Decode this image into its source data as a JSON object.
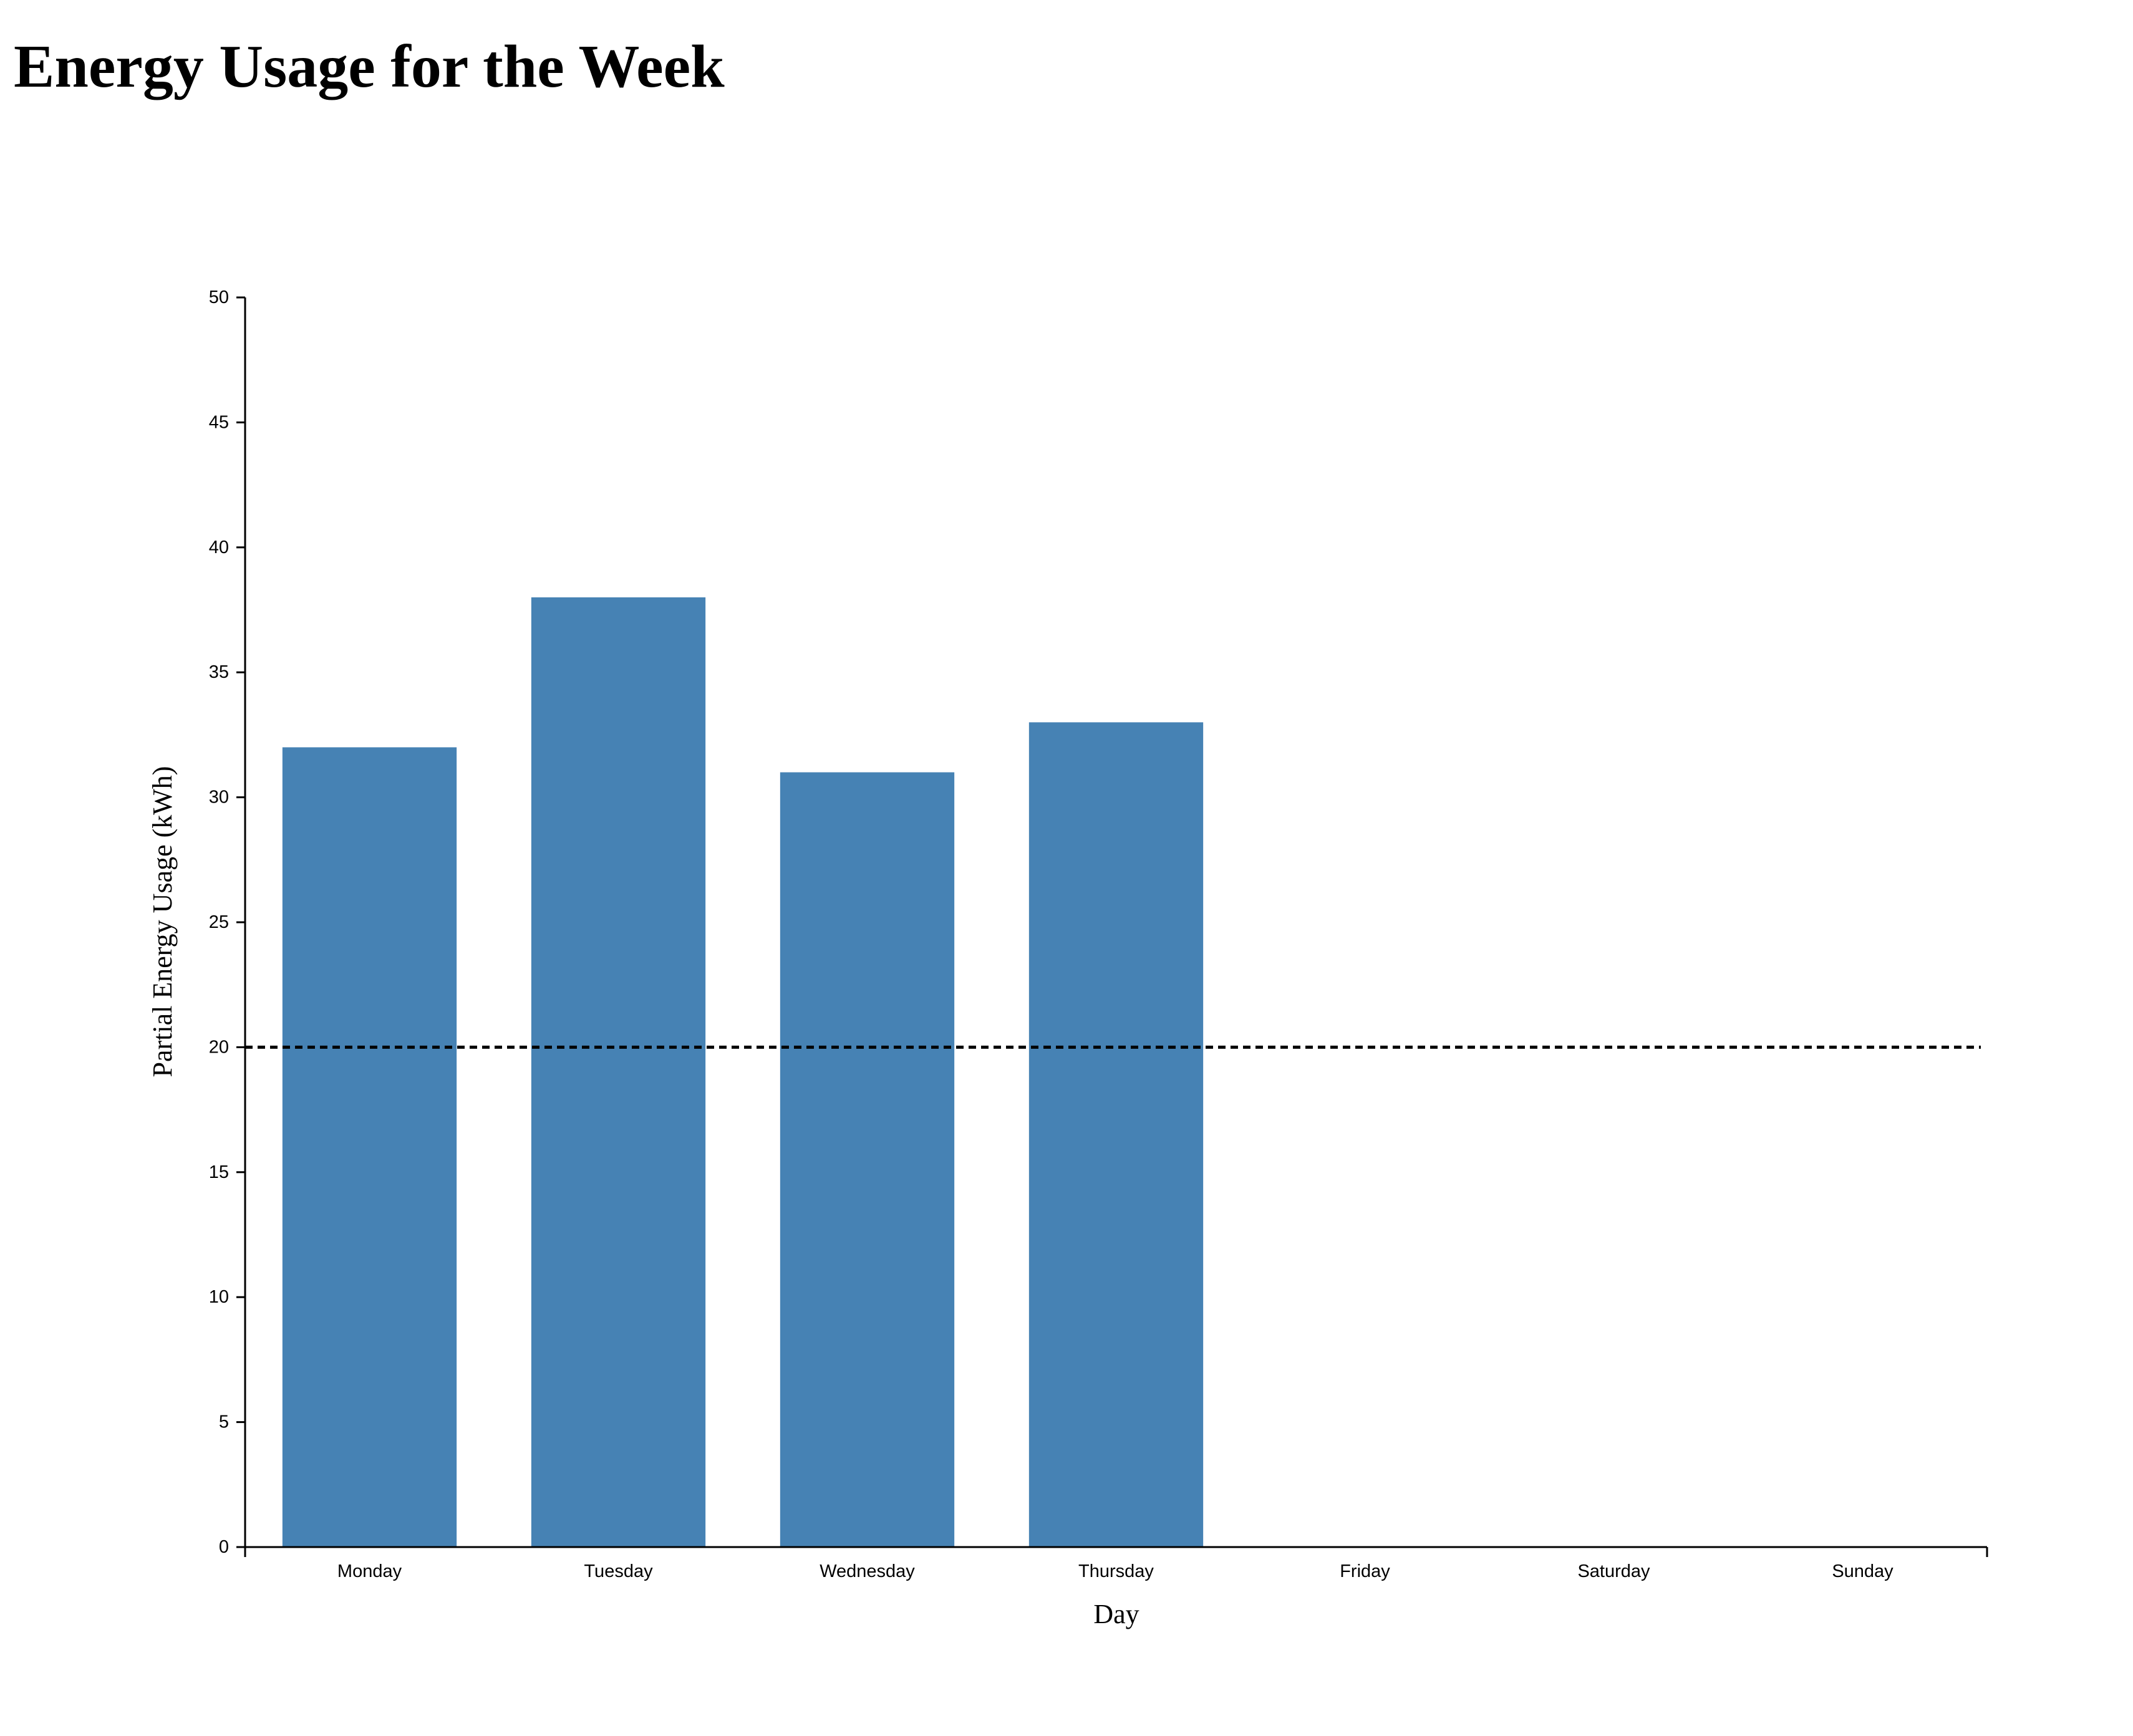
{
  "chart_data": {
    "type": "bar",
    "title": "Energy Usage for the Week",
    "xlabel": "Day",
    "ylabel": "Partial Energy Usage (kWh)",
    "categories": [
      "Monday",
      "Tuesday",
      "Wednesday",
      "Thursday",
      "Friday",
      "Saturday",
      "Sunday"
    ],
    "values": [
      32,
      38,
      31,
      33,
      null,
      null,
      null
    ],
    "ylim": [
      0,
      50
    ],
    "yticks": [
      0,
      5,
      10,
      15,
      20,
      25,
      30,
      35,
      40,
      45,
      50
    ],
    "threshold": 20,
    "bar_color": "#4682b4",
    "threshold_color": "#000000",
    "grid": false,
    "legend": "none"
  }
}
